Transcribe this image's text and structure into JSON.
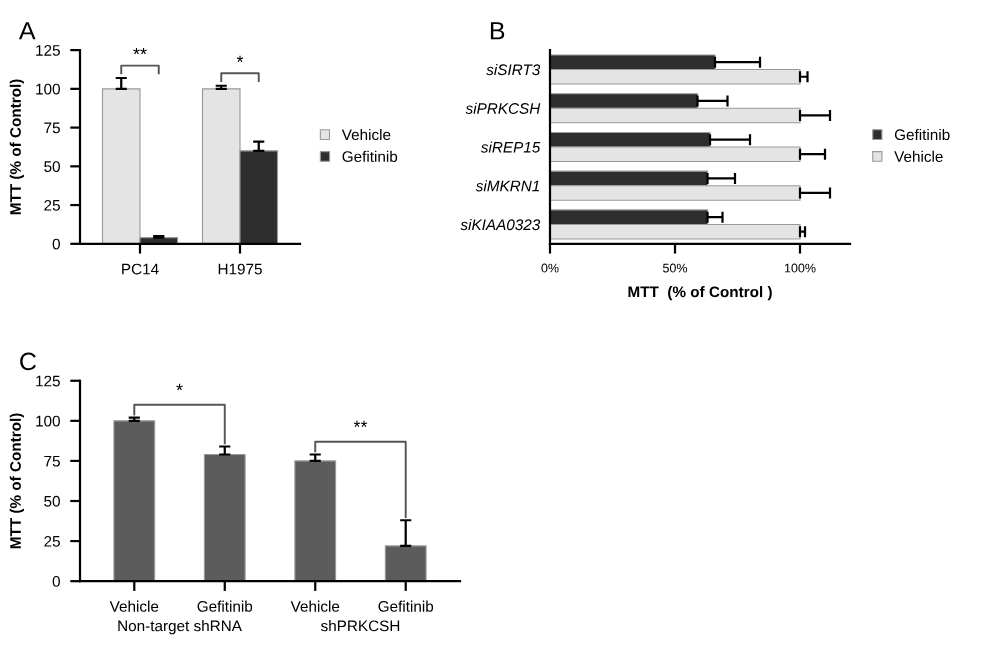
{
  "chart_data": [
    {
      "type": "bar",
      "title": "A",
      "ylabel": "MTT (% of Control)",
      "categories": [
        "PC14",
        "H1975"
      ],
      "ylim": [
        0,
        125
      ],
      "yticks": [
        0,
        25,
        50,
        75,
        100,
        125
      ],
      "grid": false,
      "legend": "right",
      "series": [
        {
          "name": "Vehicle",
          "color": "#e4e4e4",
          "values": [
            100,
            100
          ],
          "errors": [
            7,
            2
          ]
        },
        {
          "name": "Gefitinib",
          "color": "#2e2e2e",
          "values": [
            4,
            60
          ],
          "errors": [
            1,
            6
          ]
        }
      ],
      "annotations": [
        "**",
        "*"
      ]
    },
    {
      "type": "bar",
      "title": "B",
      "orientation": "horizontal",
      "xlabel": "MTT  (% of Control )",
      "categories": [
        "siSIRT3",
        "siPRKCSH",
        "siREP15",
        "siMKRN1",
        "siKIAA0323"
      ],
      "xlim": [
        0,
        120
      ],
      "xticks": [
        {
          "value": 0,
          "label": "0%"
        },
        {
          "value": 50,
          "label": "50%"
        },
        {
          "value": 100,
          "label": "100%"
        }
      ],
      "grid": false,
      "legend": "right",
      "series": [
        {
          "name": "Gefitinib",
          "color": "#2e2e2e",
          "values": [
            66,
            59,
            64,
            63,
            63
          ],
          "errors": [
            18,
            12,
            16,
            11,
            6
          ]
        },
        {
          "name": "Vehicle",
          "color": "#e4e4e4",
          "values": [
            100,
            100,
            100,
            100,
            100
          ],
          "errors": [
            3,
            12,
            10,
            12,
            2
          ]
        }
      ]
    },
    {
      "type": "bar",
      "title": "C",
      "ylabel": "MTT (% of Control)",
      "categories": [
        "Vehicle",
        "Gefitinib",
        "Vehicle",
        "Gefitinib"
      ],
      "ylim": [
        0,
        125
      ],
      "yticks": [
        0,
        25,
        50,
        75,
        100,
        125
      ],
      "grid": false,
      "legend": false,
      "series": [
        {
          "color": "#5c5c5c",
          "values": [
            100,
            79,
            75,
            22
          ],
          "errors": [
            2,
            5,
            4,
            16
          ]
        }
      ],
      "annotations": [
        "*",
        "**",
        "Non-target shRNA",
        "shPRKCSH"
      ]
    }
  ]
}
